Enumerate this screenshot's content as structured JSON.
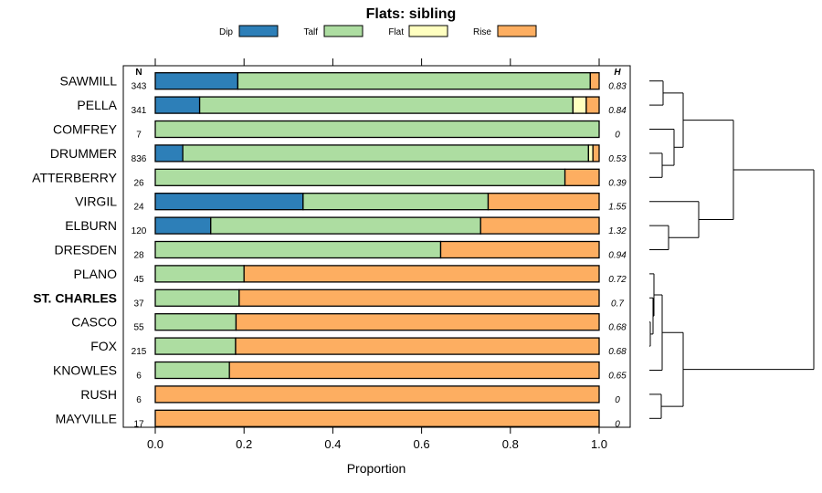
{
  "chart_data": {
    "type": "stacked-bar-horizontal",
    "title": "Flats: sibling",
    "xlabel": "Proportion",
    "xlim": [
      0,
      1
    ],
    "xticks": [
      "0.0",
      "0.2",
      "0.4",
      "0.6",
      "0.8",
      "1.0"
    ],
    "n_header": "N",
    "h_header": "H",
    "legend": [
      {
        "name": "Dip",
        "color": "#2d7fb8"
      },
      {
        "name": "Talf",
        "color": "#addda1"
      },
      {
        "name": "Flat",
        "color": "#ffffc0"
      },
      {
        "name": "Rise",
        "color": "#fdae61"
      }
    ],
    "rows": [
      {
        "label": "SAWMILL",
        "n": "343",
        "h": "0.83",
        "bold": false,
        "values": [
          0.186,
          0.794,
          0.0,
          0.02
        ]
      },
      {
        "label": "PELLA",
        "n": "341",
        "h": "0.84",
        "bold": false,
        "values": [
          0.1,
          0.841,
          0.03,
          0.029
        ]
      },
      {
        "label": "COMFREY",
        "n": "7",
        "h": "0",
        "bold": false,
        "values": [
          0.0,
          1.0,
          0.0,
          0.0
        ]
      },
      {
        "label": "DRUMMER",
        "n": "836",
        "h": "0.53",
        "bold": false,
        "values": [
          0.062,
          0.914,
          0.01,
          0.014
        ]
      },
      {
        "label": "ATTERBERRY",
        "n": "26",
        "h": "0.39",
        "bold": false,
        "values": [
          0.0,
          0.923,
          0.0,
          0.077
        ]
      },
      {
        "label": "VIRGIL",
        "n": "24",
        "h": "1.55",
        "bold": false,
        "values": [
          0.333,
          0.417,
          0.0,
          0.25
        ]
      },
      {
        "label": "ELBURN",
        "n": "120",
        "h": "1.32",
        "bold": false,
        "values": [
          0.125,
          0.608,
          0.0,
          0.267
        ]
      },
      {
        "label": "DRESDEN",
        "n": "28",
        "h": "0.94",
        "bold": false,
        "values": [
          0.0,
          0.643,
          0.0,
          0.357
        ]
      },
      {
        "label": "PLANO",
        "n": "45",
        "h": "0.72",
        "bold": false,
        "values": [
          0.0,
          0.2,
          0.0,
          0.8
        ]
      },
      {
        "label": "ST. CHARLES",
        "n": "37",
        "h": "0.7",
        "bold": true,
        "values": [
          0.0,
          0.189,
          0.0,
          0.811
        ]
      },
      {
        "label": "CASCO",
        "n": "55",
        "h": "0.68",
        "bold": false,
        "values": [
          0.0,
          0.182,
          0.0,
          0.818
        ]
      },
      {
        "label": "FOX",
        "n": "215",
        "h": "0.68",
        "bold": false,
        "values": [
          0.0,
          0.181,
          0.0,
          0.819
        ]
      },
      {
        "label": "KNOWLES",
        "n": "6",
        "h": "0.65",
        "bold": false,
        "values": [
          0.0,
          0.167,
          0.0,
          0.833
        ]
      },
      {
        "label": "RUSH",
        "n": "6",
        "h": "0",
        "bold": false,
        "values": [
          0.0,
          0.0,
          0.0,
          1.0
        ]
      },
      {
        "label": "MAYVILLE",
        "n": "17",
        "h": "0",
        "bold": false,
        "values": [
          0.0,
          0.0,
          0.0,
          1.0
        ]
      }
    ],
    "dendrogram": "hierarchical clustering of rows (unlabeled)"
  }
}
